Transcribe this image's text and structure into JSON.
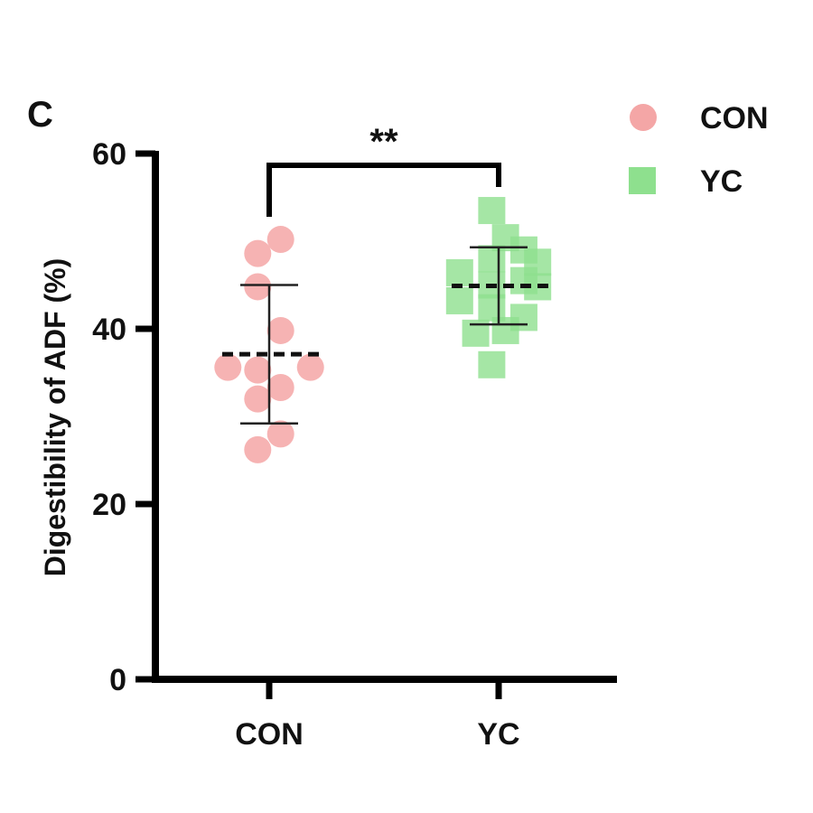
{
  "panel_label": "C",
  "chart_data": {
    "type": "scatter",
    "ylabel": "Digestibility of ADF (%)",
    "xlabel": "",
    "ylim": [
      0,
      60
    ],
    "yticks": [
      "0",
      "20",
      "40",
      "60"
    ],
    "categories": [
      "CON",
      "YC"
    ],
    "significance": "**",
    "legend_position": "top-right",
    "series": [
      {
        "name": "CON",
        "marker": "circle",
        "color": "#f4a6a6",
        "mean": 37.1,
        "sd_upper": 45.0,
        "sd_lower": 29.2,
        "points": [
          {
            "offset": -0.05,
            "value": 48.6
          },
          {
            "offset": 0.05,
            "value": 50.2
          },
          {
            "offset": -0.05,
            "value": 44.8
          },
          {
            "offset": 0.05,
            "value": 39.8
          },
          {
            "offset": -0.18,
            "value": 35.6
          },
          {
            "offset": -0.05,
            "value": 35.3
          },
          {
            "offset": 0.18,
            "value": 35.6
          },
          {
            "offset": 0.05,
            "value": 33.3
          },
          {
            "offset": -0.05,
            "value": 32.0
          },
          {
            "offset": 0.05,
            "value": 28.0
          },
          {
            "offset": -0.05,
            "value": 26.2
          }
        ]
      },
      {
        "name": "YC",
        "marker": "square",
        "color": "#8ee08e",
        "mean": 44.9,
        "sd_upper": 49.3,
        "sd_lower": 40.5,
        "points": [
          {
            "offset": -0.03,
            "value": 53.5
          },
          {
            "offset": 0.03,
            "value": 50.4
          },
          {
            "offset": -0.03,
            "value": 48.0
          },
          {
            "offset": 0.11,
            "value": 49.0
          },
          {
            "offset": 0.17,
            "value": 47.6
          },
          {
            "offset": -0.17,
            "value": 46.4
          },
          {
            "offset": -0.03,
            "value": 45.0
          },
          {
            "offset": 0.11,
            "value": 45.5
          },
          {
            "offset": 0.17,
            "value": 44.8
          },
          {
            "offset": -0.17,
            "value": 43.2
          },
          {
            "offset": -0.03,
            "value": 42.4
          },
          {
            "offset": 0.11,
            "value": 41.3
          },
          {
            "offset": -0.1,
            "value": 39.5
          },
          {
            "offset": 0.03,
            "value": 39.8
          },
          {
            "offset": -0.03,
            "value": 35.9
          }
        ]
      }
    ]
  }
}
